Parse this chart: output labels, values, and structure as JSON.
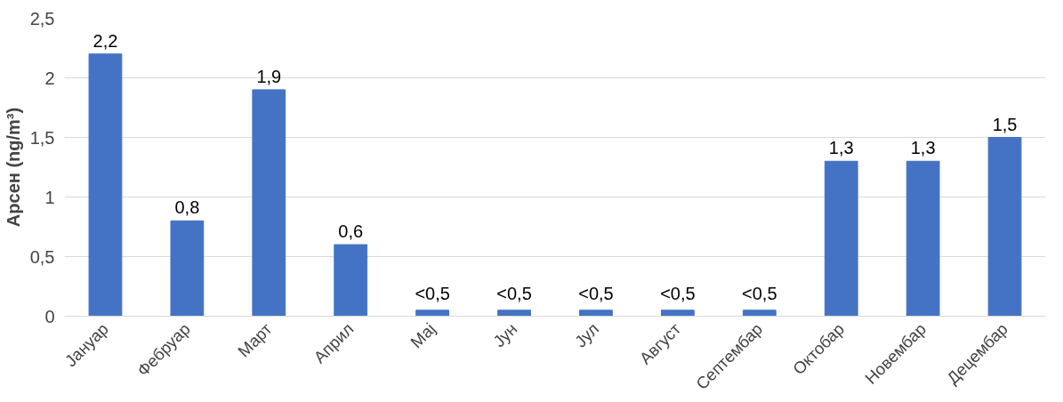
{
  "chart_data": {
    "type": "bar",
    "ylabel": "Арсен (ng/m³)",
    "categories": [
      "Јануар",
      "Фебруар",
      "Март",
      "Април",
      "Мај",
      "Јун",
      "Јул",
      "Август",
      "Септембар",
      "Октобар",
      "Новембар",
      "Децембар"
    ],
    "values": [
      2.2,
      0.8,
      1.9,
      0.6,
      0.05,
      0.05,
      0.05,
      0.05,
      0.05,
      1.3,
      1.3,
      1.5
    ],
    "value_labels": [
      "2,2",
      "0,8",
      "1,9",
      "0,6",
      "<0,5",
      "<0,5",
      "<0,5",
      "<0,5",
      "<0,5",
      "1,3",
      "1,3",
      "1,5"
    ],
    "color": "#4472c4",
    "ylim": [
      0,
      2.5
    ],
    "yticks": [
      0,
      {
        "value": 0.5,
        "label": "0,5"
      },
      1,
      {
        "value": 1.5,
        "label": "1,5"
      },
      2,
      {
        "value": 2.5,
        "label": "2,5"
      }
    ],
    "grid": "y"
  }
}
